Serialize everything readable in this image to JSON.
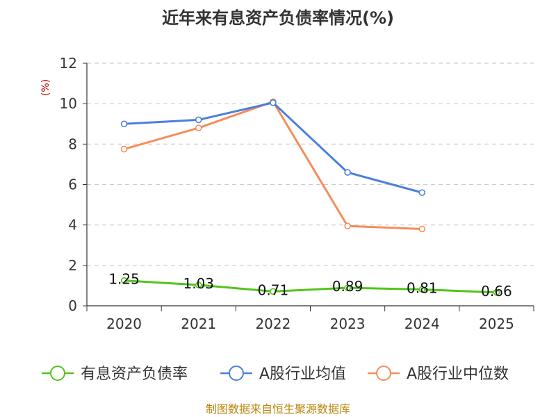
{
  "chart_data": {
    "type": "line",
    "title": "近年来有息资产负债率情况(%)",
    "xlabel": "",
    "ylabel": "(%)",
    "categories": [
      "2020",
      "2021",
      "2022",
      "2023",
      "2024",
      "2025"
    ],
    "ylim": [
      0,
      12
    ],
    "yticks": [
      "0",
      "2",
      "4",
      "6",
      "8",
      "10",
      "12"
    ],
    "grid": true,
    "legend_position": "bottom",
    "series": [
      {
        "name": "有息资产负债率",
        "color": "#52c41a",
        "values": [
          1.25,
          1.03,
          0.71,
          0.89,
          0.81,
          0.66
        ],
        "labels": [
          "1.25",
          "1.03",
          "0.71",
          "0.89",
          "0.81",
          "0.66"
        ]
      },
      {
        "name": "A股行业均值",
        "color": "#4a7fdc",
        "values": [
          9.0,
          9.2,
          10.05,
          6.6,
          5.6,
          null
        ]
      },
      {
        "name": "A股行业中位数",
        "color": "#f58d5a",
        "values": [
          7.75,
          8.8,
          10.1,
          3.95,
          3.8,
          null
        ]
      }
    ]
  },
  "source_note": "制图数据来自恒生聚源数据库"
}
